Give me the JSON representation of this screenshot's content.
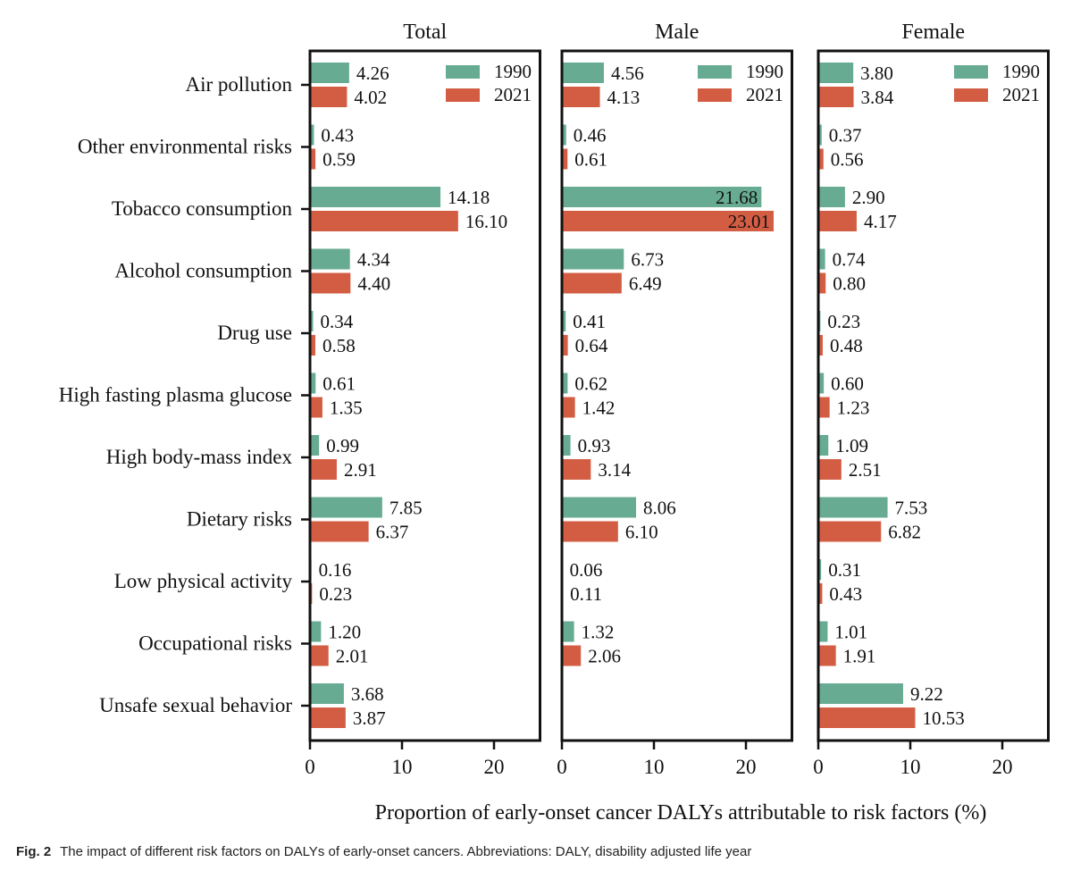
{
  "chart_data": {
    "type": "bar",
    "orientation": "horizontal",
    "categories": [
      "Air pollution",
      "Other environmental risks",
      "Tobacco consumption",
      "Alcohol consumption",
      "Drug use",
      "High fasting plasma glucose",
      "High body-mass index",
      "Dietary risks",
      "Low physical activity",
      "Occupational risks",
      "Unsafe sexual behavior"
    ],
    "xlabel": "Proportion of early-onset cancer DALYs attributable to risk factors (%)",
    "xlim": [
      0,
      25
    ],
    "xticks": [
      0,
      10,
      20
    ],
    "xtick_labels": [
      "0",
      "10",
      "20"
    ],
    "legend": {
      "placement": "top-right",
      "entries": [
        "1990",
        "2021"
      ]
    },
    "colors": {
      "1990": "#67ab92",
      "2021": "#d35d43"
    },
    "panels": [
      {
        "title": "Total",
        "series": [
          {
            "name": "1990",
            "values": [
              4.26,
              0.43,
              14.18,
              4.34,
              0.34,
              0.61,
              0.99,
              7.85,
              0.16,
              1.2,
              3.68
            ],
            "labels": [
              "4.26",
              "0.43",
              "14.18",
              "4.34",
              "0.34",
              "0.61",
              "0.99",
              "7.85",
              "0.16",
              "1.20",
              "3.68"
            ]
          },
          {
            "name": "2021",
            "values": [
              4.02,
              0.59,
              16.1,
              4.4,
              0.58,
              1.35,
              2.91,
              6.37,
              0.23,
              2.01,
              3.87
            ],
            "labels": [
              "4.02",
              "0.59",
              "16.10",
              "4.40",
              "0.58",
              "1.35",
              "2.91",
              "6.37",
              "0.23",
              "2.01",
              "3.87"
            ]
          }
        ]
      },
      {
        "title": "Male",
        "series": [
          {
            "name": "1990",
            "values": [
              4.56,
              0.46,
              21.68,
              6.73,
              0.41,
              0.62,
              0.93,
              8.06,
              0.06,
              1.32,
              null
            ],
            "labels": [
              "4.56",
              "0.46",
              "21.68",
              "6.73",
              "0.41",
              "0.62",
              "0.93",
              "8.06",
              "0.06",
              "1.32",
              null
            ]
          },
          {
            "name": "2021",
            "values": [
              4.13,
              0.61,
              23.01,
              6.49,
              0.64,
              1.42,
              3.14,
              6.1,
              0.11,
              2.06,
              null
            ],
            "labels": [
              "4.13",
              "0.61",
              "23.01",
              "6.49",
              "0.64",
              "1.42",
              "3.14",
              "6.10",
              "0.11",
              "2.06",
              null
            ]
          }
        ]
      },
      {
        "title": "Female",
        "series": [
          {
            "name": "1990",
            "values": [
              3.8,
              0.37,
              2.9,
              0.74,
              0.23,
              0.6,
              1.09,
              7.53,
              0.31,
              1.01,
              9.22
            ],
            "labels": [
              "3.80",
              "0.37",
              "2.90",
              "0.74",
              "0.23",
              "0.60",
              "1.09",
              "7.53",
              "0.31",
              "1.01",
              "9.22"
            ]
          },
          {
            "name": "2021",
            "values": [
              3.84,
              0.56,
              4.17,
              0.8,
              0.48,
              1.23,
              2.51,
              6.82,
              0.43,
              1.91,
              10.53
            ],
            "labels": [
              "3.84",
              "0.56",
              "4.17",
              "0.80",
              "0.48",
              "1.23",
              "2.51",
              "6.82",
              "0.43",
              "1.91",
              "10.53"
            ]
          }
        ]
      }
    ]
  },
  "caption": {
    "label": "Fig. 2",
    "text": "The impact of different risk factors on DALYs of early-onset cancers. Abbreviations: DALY, disability adjusted life year"
  }
}
